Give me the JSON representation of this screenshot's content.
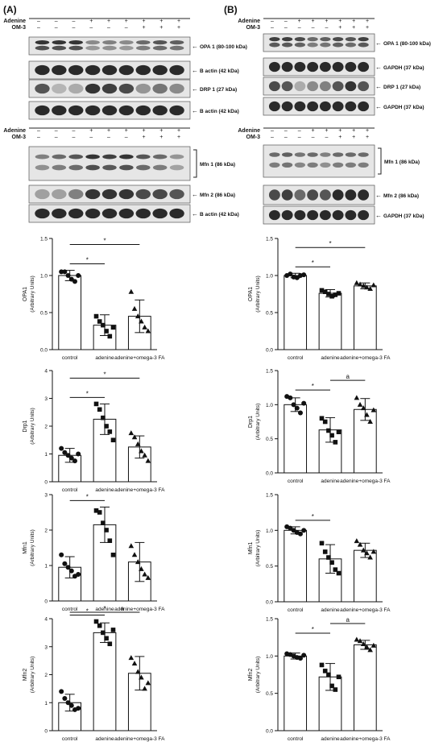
{
  "panels": [
    {
      "label": "(A)",
      "sign_sets": [
        {
          "rows": [
            {
              "name": "Adenine",
              "signs": [
                "–",
                "–",
                "–",
                "+",
                "+",
                "+",
                "+",
                "+",
                "+"
              ]
            },
            {
              "name": "OM-3",
              "signs": [
                "–",
                "–",
                "–",
                "–",
                "–",
                "–",
                "+",
                "+",
                "+"
              ]
            }
          ]
        },
        {
          "rows": [
            {
              "name": "Adenine",
              "signs": [
                "–",
                "–",
                "–",
                "+",
                "+",
                "+",
                "+",
                "+",
                "+"
              ]
            },
            {
              "name": "OM-3",
              "signs": [
                "–",
                "–",
                "–",
                "–",
                "–",
                "–",
                "+",
                "+",
                "+"
              ]
            }
          ]
        }
      ],
      "blots": [
        {
          "label": "OPA 1 (80-100 kDa)",
          "intensity": [
            0.85,
            0.85,
            0.85,
            0.45,
            0.5,
            0.45,
            0.6,
            0.7,
            0.65
          ],
          "double": true
        },
        {
          "label": "B actin (42 kDa)",
          "intensity": [
            0.9,
            0.9,
            0.9,
            0.9,
            0.9,
            0.9,
            0.9,
            0.9,
            0.9
          ],
          "double": false
        },
        {
          "label": "DRP 1 (27 kDa)",
          "intensity": [
            0.7,
            0.25,
            0.3,
            0.85,
            0.8,
            0.75,
            0.4,
            0.55,
            0.45
          ],
          "double": false
        },
        {
          "label": "B actin (42 kDa)",
          "intensity": [
            0.9,
            0.9,
            0.9,
            0.9,
            0.9,
            0.9,
            0.9,
            0.9,
            0.9
          ],
          "double": false
        },
        {
          "label": "Mfn 1 (86 kDa)",
          "intensity": [
            0.5,
            0.6,
            0.7,
            0.85,
            0.8,
            0.85,
            0.7,
            0.6,
            0.4
          ],
          "double": true,
          "tall": true,
          "bracket": true
        },
        {
          "label": "Mfn 2 (86 kDa)",
          "intensity": [
            0.35,
            0.35,
            0.5,
            0.85,
            0.85,
            0.85,
            0.75,
            0.75,
            0.7
          ],
          "double": false
        },
        {
          "label": "B actin (42 kDa)",
          "intensity": [
            0.9,
            0.9,
            0.9,
            0.9,
            0.9,
            0.9,
            0.9,
            0.9,
            0.9
          ],
          "double": false
        }
      ]
    },
    {
      "label": "(B)",
      "sign_sets": [
        {
          "rows": [
            {
              "name": "Adenine",
              "signs": [
                "–",
                "–",
                "+",
                "+",
                "+",
                "+",
                "+",
                "+"
              ]
            },
            {
              "name": "OM-3",
              "signs": [
                "–",
                "–",
                "–",
                "–",
                "–",
                "+",
                "+",
                "+"
              ]
            }
          ]
        },
        {
          "rows": [
            {
              "name": "Adenine",
              "signs": [
                "–",
                "–",
                "–",
                "+",
                "+",
                "+",
                "+",
                "+"
              ]
            },
            {
              "name": "OM-3",
              "signs": [
                "–",
                "–",
                "–",
                "–",
                "–",
                "+",
                "+",
                "+"
              ]
            }
          ]
        }
      ],
      "blots": [
        {
          "label": "OPA 1 (80-100 kDa)",
          "intensity": [
            0.8,
            0.8,
            0.75,
            0.6,
            0.65,
            0.75,
            0.7,
            0.8
          ],
          "double": true
        },
        {
          "label": "GAPDH (37 kDa)",
          "intensity": [
            0.9,
            0.9,
            0.9,
            0.9,
            0.9,
            0.9,
            0.9,
            0.9
          ],
          "double": false
        },
        {
          "label": "DRP 1 (27 kDa)",
          "intensity": [
            0.75,
            0.7,
            0.3,
            0.45,
            0.5,
            0.7,
            0.85,
            0.7
          ],
          "double": false
        },
        {
          "label": "GAPDH (37 kDa)",
          "intensity": [
            0.9,
            0.9,
            0.9,
            0.9,
            0.9,
            0.9,
            0.9,
            0.9
          ],
          "double": false
        },
        {
          "label": "Mfn 1 (86 kDa)",
          "intensity": [
            0.6,
            0.65,
            0.55,
            0.6,
            0.5,
            0.6,
            0.6,
            0.6
          ],
          "double": true,
          "tall": true,
          "bracket": true
        },
        {
          "label": "Mfn 2 (86 kDa)",
          "intensity": [
            0.75,
            0.8,
            0.6,
            0.75,
            0.7,
            0.9,
            0.9,
            0.9
          ],
          "double": false
        },
        {
          "label": "GAPDH (37 kDa)",
          "intensity": [
            0.9,
            0.9,
            0.9,
            0.9,
            0.9,
            0.9,
            0.9,
            0.9
          ],
          "double": false
        }
      ]
    }
  ],
  "chart_data": [
    {
      "type": "bar",
      "panel": "A",
      "title": "",
      "ylabel": "OPA1",
      "ylabel2": "(Arbitrary Units)",
      "ylim": [
        0,
        1.5
      ],
      "yticks": [
        "0.0",
        "0.5",
        "1.0",
        "1.5"
      ],
      "categories": [
        "control",
        "adenine",
        "adenine+omega-3 FA"
      ],
      "values": [
        1.0,
        0.33,
        0.45
      ],
      "errors": [
        0.07,
        0.14,
        0.22
      ],
      "markers": [
        "circle",
        "square",
        "triangle"
      ],
      "points": [
        [
          1.05,
          1.05,
          1.0,
          0.95,
          0.92,
          1.0
        ],
        [
          0.45,
          0.38,
          0.33,
          0.25,
          0.18,
          0.3
        ],
        [
          0.78,
          0.55,
          0.45,
          0.38,
          0.3,
          0.25
        ]
      ],
      "significance": [
        {
          "from": 0,
          "to": 1,
          "text": "*"
        },
        {
          "from": 0,
          "to": 2,
          "text": "*"
        }
      ]
    },
    {
      "type": "bar",
      "panel": "B",
      "title": "",
      "ylabel": "OPA1",
      "ylabel2": "(Arbitrary Units)",
      "ylim": [
        0,
        1.5
      ],
      "yticks": [
        "0.0",
        "0.5",
        "1.0",
        "1.5"
      ],
      "categories": [
        "control",
        "adenine",
        "adenine+omega-3 FA"
      ],
      "values": [
        1.0,
        0.76,
        0.86
      ],
      "errors": [
        0.03,
        0.05,
        0.04
      ],
      "markers": [
        "circle",
        "square",
        "triangle"
      ],
      "points": [
        [
          1.0,
          1.02,
          0.98,
          0.97,
          1.0,
          1.01
        ],
        [
          0.8,
          0.78,
          0.75,
          0.72,
          0.74,
          0.76
        ],
        [
          0.9,
          0.88,
          0.86,
          0.84,
          0.82,
          0.87
        ]
      ],
      "significance": [
        {
          "from": 0,
          "to": 1,
          "text": "*"
        },
        {
          "from": 0,
          "to": 2,
          "text": "*"
        }
      ]
    },
    {
      "type": "bar",
      "panel": "A",
      "title": "",
      "ylabel": "Drp1",
      "ylabel2": "(Arbitrary Units)",
      "ylim": [
        0,
        4
      ],
      "yticks": [
        "0",
        "1",
        "2",
        "3",
        "4"
      ],
      "categories": [
        "control",
        "adenine",
        "adenine+omega-3 FA"
      ],
      "values": [
        0.95,
        2.25,
        1.25
      ],
      "errors": [
        0.25,
        0.55,
        0.4
      ],
      "markers": [
        "circle",
        "square",
        "triangle"
      ],
      "points": [
        [
          1.2,
          1.05,
          0.95,
          0.85,
          0.75,
          1.0
        ],
        [
          2.8,
          2.6,
          2.3,
          2.0,
          1.8,
          1.5
        ],
        [
          1.75,
          1.6,
          1.35,
          1.1,
          0.95,
          0.75
        ]
      ],
      "significance": [
        {
          "from": 0,
          "to": 1,
          "text": "*"
        },
        {
          "from": 0,
          "to": 2,
          "text": "*"
        }
      ]
    },
    {
      "type": "bar",
      "panel": "B",
      "title": "",
      "ylabel": "Drp1",
      "ylabel2": "(Arbitrary Units)",
      "ylim": [
        0,
        1.5
      ],
      "yticks": [
        "0.0",
        "0.5",
        "1.0",
        "1.5"
      ],
      "categories": [
        "control",
        "adenine",
        "adenine+omega-3 FA"
      ],
      "values": [
        1.0,
        0.63,
        0.93
      ],
      "errors": [
        0.1,
        0.18,
        0.16
      ],
      "markers": [
        "circle",
        "square",
        "triangle"
      ],
      "points": [
        [
          1.12,
          1.1,
          1.0,
          0.95,
          0.88,
          1.02
        ],
        [
          0.8,
          0.75,
          0.62,
          0.55,
          0.45,
          0.6
        ],
        [
          1.1,
          1.0,
          0.95,
          0.85,
          0.75,
          0.92
        ]
      ],
      "significance": [
        {
          "from": 0,
          "to": 1,
          "text": "*"
        },
        {
          "from": 1,
          "to": 2,
          "text": "a"
        }
      ]
    },
    {
      "type": "bar",
      "panel": "A",
      "title": "",
      "ylabel": "Mfn1",
      "ylabel2": "(Arbitrary Units)",
      "ylim": [
        0,
        3
      ],
      "yticks": [
        "0",
        "1",
        "2",
        "3"
      ],
      "categories": [
        "control",
        "adenine",
        "adenine+omega-3 FA"
      ],
      "values": [
        0.95,
        2.15,
        1.1
      ],
      "errors": [
        0.3,
        0.5,
        0.55
      ],
      "markers": [
        "circle",
        "square",
        "triangle"
      ],
      "points": [
        [
          1.3,
          1.05,
          0.95,
          0.85,
          0.7,
          0.75
        ],
        [
          2.55,
          2.5,
          2.2,
          2.0,
          1.7,
          1.3
        ],
        [
          1.55,
          1.3,
          1.1,
          0.9,
          0.75,
          0.65
        ]
      ],
      "significance": [
        {
          "from": 0,
          "to": 1,
          "text": "*"
        }
      ]
    },
    {
      "type": "bar",
      "panel": "B",
      "title": "",
      "ylabel": "Mfn1",
      "ylabel2": "(Arbitrary Units)",
      "ylim": [
        0,
        1.5
      ],
      "yticks": [
        "0.0",
        "0.5",
        "1.0",
        "1.5"
      ],
      "categories": [
        "control",
        "adenine",
        "adenine+omega-3 FA"
      ],
      "values": [
        1.0,
        0.6,
        0.72
      ],
      "errors": [
        0.05,
        0.2,
        0.1
      ],
      "markers": [
        "circle",
        "square",
        "triangle"
      ],
      "points": [
        [
          1.05,
          1.03,
          1.0,
          0.97,
          0.95,
          1.0
        ],
        [
          0.82,
          0.7,
          0.62,
          0.55,
          0.45,
          0.4
        ],
        [
          0.85,
          0.8,
          0.72,
          0.68,
          0.62,
          0.7
        ]
      ],
      "significance": [
        {
          "from": 0,
          "to": 1,
          "text": "*"
        }
      ]
    },
    {
      "type": "bar",
      "panel": "A",
      "title": "",
      "ylabel": "Mfn2",
      "ylabel2": "(Arbitrary Units)",
      "ylim": [
        0,
        4
      ],
      "yticks": [
        "0",
        "1",
        "2",
        "3",
        "4"
      ],
      "categories": [
        "control",
        "adenine",
        "adenine+omega-3 FA"
      ],
      "values": [
        1.0,
        3.5,
        2.05
      ],
      "errors": [
        0.3,
        0.35,
        0.6
      ],
      "markers": [
        "circle",
        "square",
        "triangle"
      ],
      "points": [
        [
          1.4,
          1.15,
          1.0,
          0.9,
          0.75,
          0.8
        ],
        [
          3.9,
          3.75,
          3.5,
          3.3,
          3.1,
          3.6
        ],
        [
          2.6,
          2.4,
          2.1,
          1.9,
          1.5,
          1.7
        ]
      ],
      "significance": [
        {
          "from": 0,
          "to": 1,
          "text": "*"
        },
        {
          "from": 0,
          "to": 2,
          "text": "*"
        },
        {
          "from": 1,
          "to": 2,
          "text": "a"
        }
      ]
    },
    {
      "type": "bar",
      "panel": "B",
      "title": "",
      "ylabel": "Mfn2",
      "ylabel2": "(Arbitrary Units)",
      "ylim": [
        0,
        1.5
      ],
      "yticks": [
        "0.0",
        "0.5",
        "1.0",
        "1.5"
      ],
      "categories": [
        "control",
        "adenine",
        "adenine+omega-3 FA"
      ],
      "values": [
        1.0,
        0.72,
        1.15
      ],
      "errors": [
        0.04,
        0.18,
        0.06
      ],
      "markers": [
        "circle",
        "square",
        "triangle"
      ],
      "points": [
        [
          1.03,
          1.02,
          1.0,
          0.98,
          0.97,
          1.01
        ],
        [
          0.88,
          0.8,
          0.75,
          0.6,
          0.55,
          0.72
        ],
        [
          1.22,
          1.2,
          1.16,
          1.12,
          1.08,
          1.14
        ]
      ],
      "significance": [
        {
          "from": 0,
          "to": 1,
          "text": "*"
        },
        {
          "from": 1,
          "to": 2,
          "text": "a"
        }
      ]
    }
  ]
}
